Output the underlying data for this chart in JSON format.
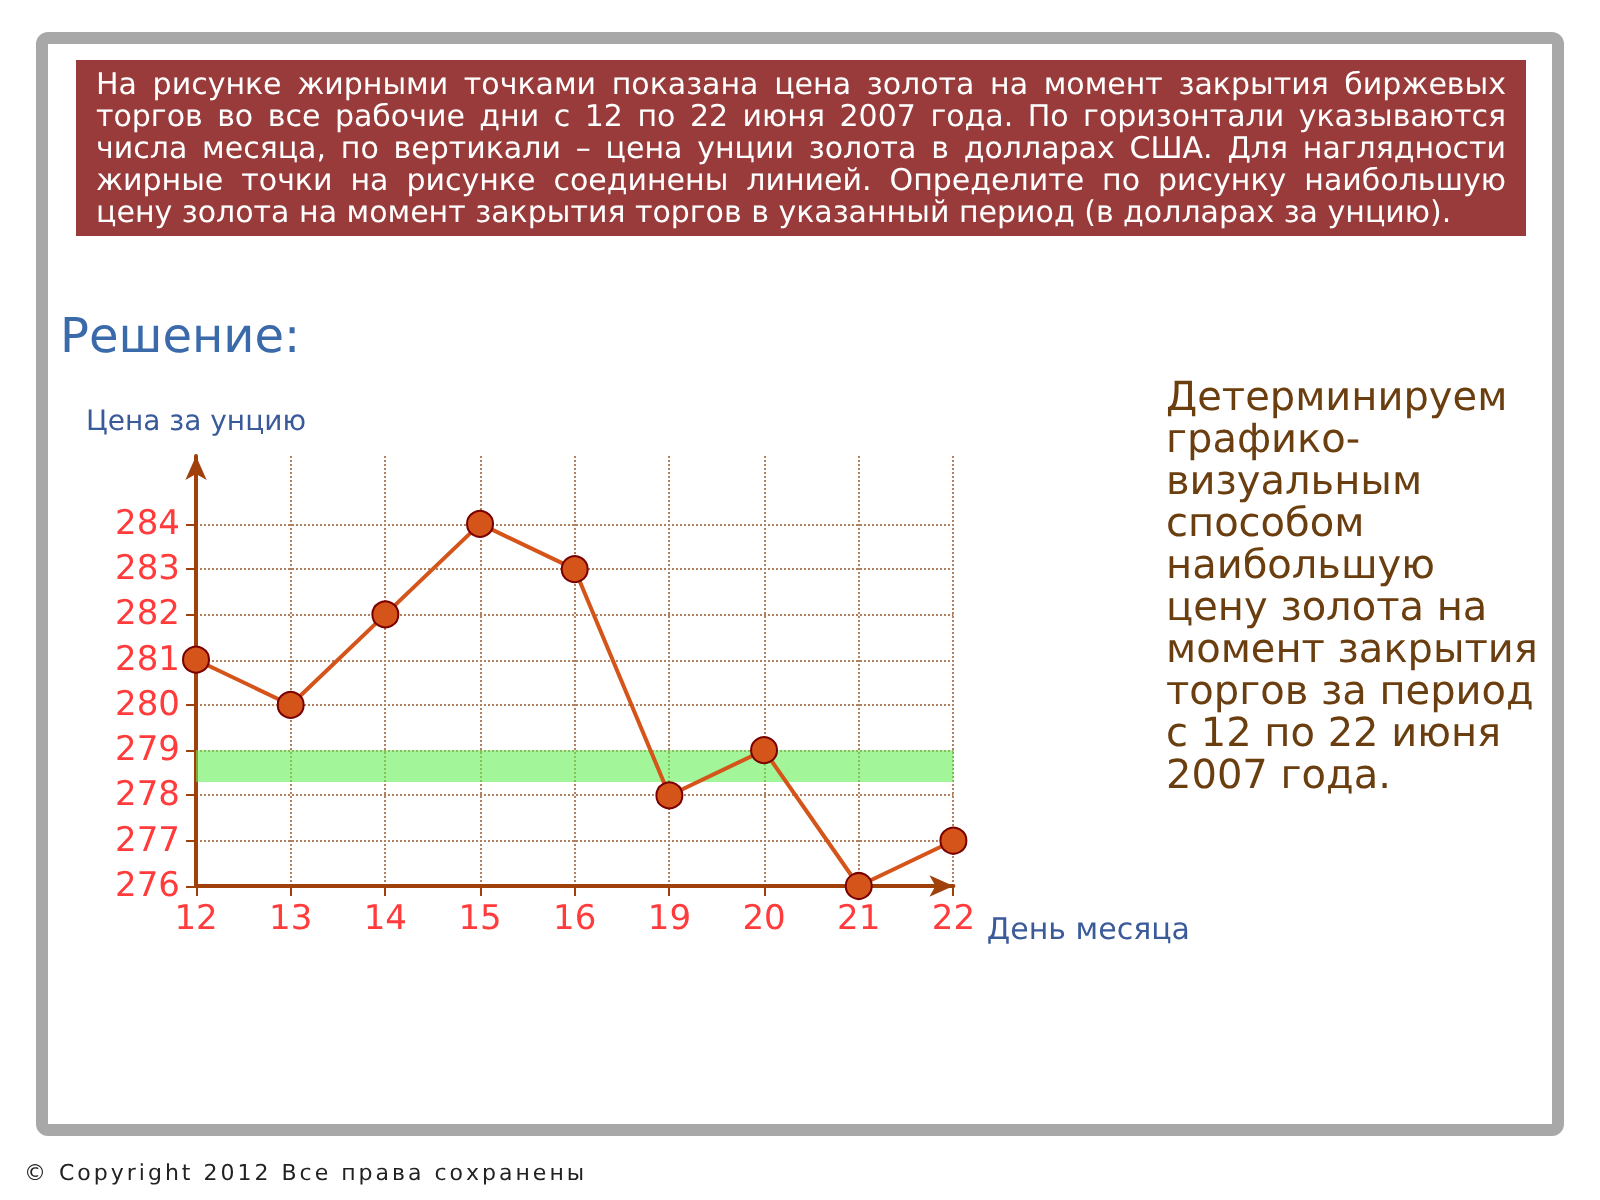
{
  "chart_data": {
    "type": "line",
    "title": "На рисунке жирными точками показана цена золота на момент закрытия биржевых торгов во все рабочие дни с 12 по 22 июня 2007 года. По горизонтали указываются числа месяца, по вертикали – цена унции золота в долларах США. Для наглядности жирные точки на рисунке соединены линией. Определите по рисунку наибольшую цену золота на момент закрытия торгов в указанный период (в долларах за унцию).",
    "subtitle": "Решение:",
    "xlabel": "День месяца",
    "ylabel": "Цена за унцию",
    "categories": [
      "12",
      "13",
      "14",
      "15",
      "16",
      "19",
      "20",
      "21",
      "22"
    ],
    "series": [
      {
        "color": "#d4541a",
        "values": [
          281,
          280,
          282,
          284,
          283,
          278,
          279,
          276,
          277
        ]
      }
    ],
    "ylim": [
      276,
      285.5
    ],
    "yticks": [
      276,
      277,
      278,
      279,
      280,
      281,
      282,
      283,
      284
    ],
    "bands": [
      {
        "axis": "y",
        "from": 278.3,
        "to": 279,
        "color": "#66ee55"
      }
    ],
    "grid": true,
    "marker": "circle",
    "line_style": "solid",
    "annotations": [
      "Детерминируем графико-визуальным способом наибольшую цену золота на момент закрытия торгов за период с 12 по 22 июня 2007 года.",
      "© Copyright 2012 Все права сохранены"
    ]
  }
}
